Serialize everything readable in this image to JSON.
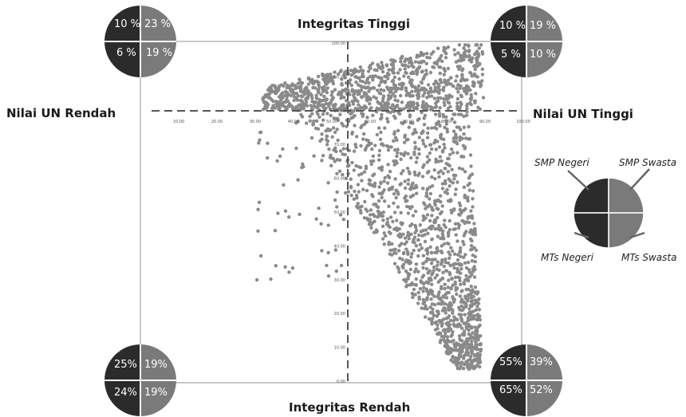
{
  "chart_data": {
    "type": "scatter",
    "title": "",
    "quadrant_labels": {
      "top": "Integritas Tinggi",
      "bottom": "Integritas Rendah",
      "left": "Nilai UN Rendah",
      "right": "Nilai UN Tinggi"
    },
    "x_ticks": [
      "10.00",
      "20.00",
      "30.00",
      "40.00",
      "50.00",
      "60.00",
      "70.00",
      "80.00",
      "90.00",
      "100.00"
    ],
    "y_ticks": [
      "100.00",
      "90.00",
      "80.00",
      "70.00",
      "60.00",
      "50.00",
      "40.00",
      "30.00",
      "20.00",
      "10.00",
      "0.00"
    ],
    "xlim": [
      0,
      100
    ],
    "ylim": [
      0,
      100
    ],
    "reference_lines": {
      "x": 55,
      "y": 82
    },
    "point_color": "#8a8a8a",
    "series_color_dark": "#2b2b2b",
    "series_color_light": "#7a7a7a",
    "legend": {
      "top_left": "SMP Negeri",
      "top_right": "SMP Swasta",
      "bottom_left": "MTs Negeri",
      "bottom_right": "MTs Swasta"
    },
    "quadrant_pies": {
      "top_left": {
        "tl": "10 %",
        "tr": "23 %",
        "bl": "6 %",
        "br": "19 %"
      },
      "top_right": {
        "tl": "10 %",
        "tr": "19 %",
        "bl": "5 %",
        "br": "10 %"
      },
      "bottom_left": {
        "tl": "25%",
        "tr": "19%",
        "bl": "24%",
        "br": "19%"
      },
      "bottom_right": {
        "tl": "55%",
        "tr": "39%",
        "bl": "65%",
        "br": "52%"
      }
    }
  }
}
